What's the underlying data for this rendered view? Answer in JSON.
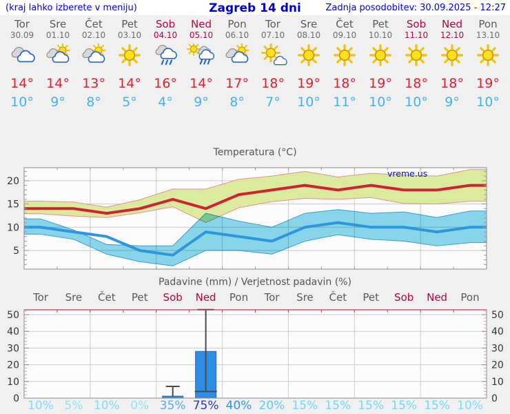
{
  "header": {
    "left": "(kraj lahko izberete v meniju)",
    "title": "Zagreb 14 dni",
    "right": "Zadnja posodobitev: 30.09.2025 - 12:27"
  },
  "colors": {
    "header_text": "#0000dd",
    "weekday": "#5a5a5a",
    "weekend": "#bb0044",
    "tmax_text": "#dd2233",
    "tmin_text": "#44b2f0",
    "panel_bg": "#f0f0f0",
    "plot_bg": "#fbfbfb"
  },
  "days": [
    {
      "name": "Tor",
      "date": "30.09",
      "weekend": false,
      "icon": "cloudy",
      "tmax": "14°",
      "tmin": "10°"
    },
    {
      "name": "Sre",
      "date": "01.10",
      "weekend": false,
      "icon": "partly-cloudy",
      "tmax": "14°",
      "tmin": "9°"
    },
    {
      "name": "Čet",
      "date": "02.10",
      "weekend": false,
      "icon": "partly-cloudy",
      "tmax": "13°",
      "tmin": "8°"
    },
    {
      "name": "Pet",
      "date": "03.10",
      "weekend": false,
      "icon": "sunny",
      "tmax": "14°",
      "tmin": "5°"
    },
    {
      "name": "Sob",
      "date": "04.10",
      "weekend": true,
      "icon": "rain",
      "tmax": "16°",
      "tmin": "4°"
    },
    {
      "name": "Ned",
      "date": "05.10",
      "weekend": true,
      "icon": "sun-rain",
      "tmax": "14°",
      "tmin": "9°"
    },
    {
      "name": "Pon",
      "date": "06.10",
      "weekend": false,
      "icon": "partly-cloudy",
      "tmax": "17°",
      "tmin": "8°"
    },
    {
      "name": "Tor",
      "date": "07.10",
      "weekend": false,
      "icon": "sun-cloud",
      "tmax": "18°",
      "tmin": "7°"
    },
    {
      "name": "Sre",
      "date": "08.10",
      "weekend": false,
      "icon": "sunny",
      "tmax": "19°",
      "tmin": "10°"
    },
    {
      "name": "Čet",
      "date": "09.10",
      "weekend": false,
      "icon": "sunny",
      "tmax": "18°",
      "tmin": "11°"
    },
    {
      "name": "Pet",
      "date": "10.10",
      "weekend": false,
      "icon": "sunny",
      "tmax": "19°",
      "tmin": "10°"
    },
    {
      "name": "Sob",
      "date": "11.10",
      "weekend": true,
      "icon": "sunny",
      "tmax": "18°",
      "tmin": "10°"
    },
    {
      "name": "Ned",
      "date": "12.10",
      "weekend": true,
      "icon": "sunny",
      "tmax": "18°",
      "tmin": "9°"
    },
    {
      "name": "Pon",
      "date": "13.10",
      "weekend": false,
      "icon": "sunny",
      "tmax": "19°",
      "tmin": "10°"
    }
  ],
  "chart_data": [
    {
      "type": "line",
      "title": "Temperatura (°C)",
      "watermark": "vreme.us",
      "watermark_color": "#0013dd",
      "x_count": 14,
      "ylim": [
        1.0,
        22.8
      ],
      "yticks": [
        5,
        10,
        15,
        20
      ],
      "minor_step": 1,
      "grid": true,
      "vgrid_every_days": 2,
      "series": [
        {
          "name": "max-temp",
          "color": "#cc2433",
          "width": 4,
          "values": [
            14,
            14,
            13,
            14,
            16,
            14,
            17,
            18,
            19,
            18,
            19,
            18,
            18,
            19
          ]
        },
        {
          "name": "min-temp",
          "color": "#2e96dc",
          "width": 4,
          "values": [
            10,
            9,
            8,
            5,
            4,
            9,
            8,
            7,
            10,
            11,
            10,
            10,
            9,
            10
          ]
        }
      ],
      "bands": [
        {
          "name": "max-temp-range",
          "fill": "#dcea9e",
          "edge": "#e59090",
          "upper": [
            15.6,
            15.4,
            14.3,
            15.9,
            18.2,
            18.2,
            20.3,
            21,
            22,
            20.8,
            21.6,
            21.2,
            21,
            22.4
          ],
          "lower": [
            12.9,
            12.4,
            12.1,
            13.1,
            14.4,
            11,
            14.2,
            15.5,
            16.2,
            16,
            16.4,
            15.1,
            15,
            15.6
          ]
        },
        {
          "name": "min-temp-range",
          "fill": "#8ad9ed",
          "edge": "#38a2d9",
          "blend": "multiply",
          "upper": [
            11.8,
            9.4,
            6.3,
            6,
            6,
            13,
            11.3,
            10,
            13,
            13.8,
            13,
            13.3,
            12.1,
            13.5
          ],
          "lower": [
            8.5,
            7.4,
            4.2,
            2.6,
            1.7,
            5,
            5,
            4.2,
            7,
            8.4,
            7.4,
            7,
            6,
            6.7
          ]
        }
      ]
    },
    {
      "type": "bar",
      "title": "Padavine (mm) / Verjetnost padavin (%)",
      "categories": [
        "Tor",
        "Sre",
        "Čet",
        "Pet",
        "Sob",
        "Ned",
        "Pon",
        "Tor",
        "Sre",
        "Čet",
        "Pet",
        "Sob",
        "Ned",
        "Pon"
      ],
      "weekend_indices": [
        4,
        5,
        11,
        12
      ],
      "ylim": [
        0,
        52.9
      ],
      "yticks": [
        0,
        10,
        20,
        30,
        40,
        50
      ],
      "minor_step": 2,
      "grid": true,
      "vgrid_every_days": 2,
      "bar_color": "#2e8ee6",
      "bar_edge": "#1a6fc4",
      "top_axis_color": "#c23b55",
      "values": [
        0,
        0,
        0,
        0,
        1.2,
        28,
        0,
        0,
        0,
        0,
        0,
        0,
        0,
        0
      ],
      "whiskers": [
        {
          "day_index": 4,
          "low": 1.2,
          "high": 7,
          "low_cap": 0,
          "high_cap": 20
        },
        {
          "day_index": 5,
          "low": 4,
          "high": 53,
          "low_cap": 32,
          "high_cap": 24
        }
      ],
      "probabilities": [
        {
          "label": "10%",
          "color": "#7edcf6"
        },
        {
          "label": "5%",
          "color": "#8ee4f8"
        },
        {
          "label": "10%",
          "color": "#7edcf6"
        },
        {
          "label": "0%",
          "color": "#8ee4f8"
        },
        {
          "label": "35%",
          "color": "#55aeee"
        },
        {
          "label": "75%",
          "color": "#2537cd"
        },
        {
          "label": "40%",
          "color": "#2f97ea"
        },
        {
          "label": "20%",
          "color": "#5bcdf1"
        },
        {
          "label": "15%",
          "color": "#73d8f5"
        },
        {
          "label": "15%",
          "color": "#73d8f5"
        },
        {
          "label": "15%",
          "color": "#73d8f5"
        },
        {
          "label": "15%",
          "color": "#73d8f5"
        },
        {
          "label": "15%",
          "color": "#73d8f5"
        },
        {
          "label": "10%",
          "color": "#7edcf6"
        }
      ]
    }
  ]
}
